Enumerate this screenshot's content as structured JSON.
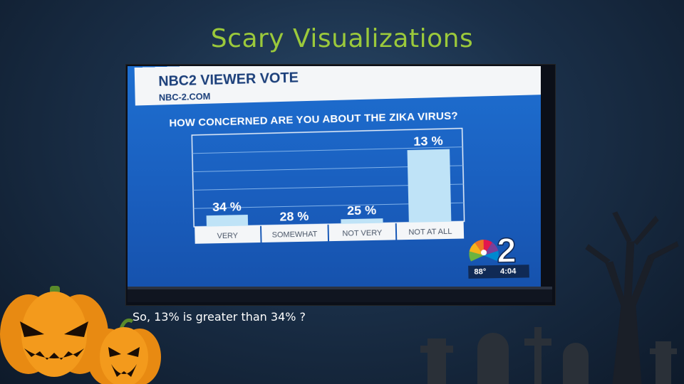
{
  "slide": {
    "title": "Scary Visualizations",
    "caption": "So, 13% is greater than 34% ?"
  },
  "broadcast": {
    "brand_title": "NBC2 VIEWER VOTE",
    "brand_url": "NBC-2.COM",
    "logo_number": "2",
    "temperature": "88°",
    "time": "4:04"
  },
  "colors": {
    "title_green": "#9bc93b",
    "bar_light_blue": "#bfe3f7",
    "screen_blue": "#1e6fd0",
    "label_box": "#f4f6f8"
  },
  "chart_data": {
    "type": "bar",
    "title": "HOW CONCERNED ARE YOU ABOUT THE ZIKA VIRUS?",
    "categories": [
      "VERY",
      "SOMEWHAT",
      "NOT VERY",
      "NOT AT ALL"
    ],
    "values": [
      34,
      28,
      25,
      13
    ],
    "value_labels": [
      "34 %",
      "28 %",
      "25 %",
      "13 %"
    ],
    "drawn_heights": [
      0.12,
      0.0,
      0.05,
      0.78
    ],
    "unit": "%",
    "grid": true,
    "legend": "none"
  }
}
